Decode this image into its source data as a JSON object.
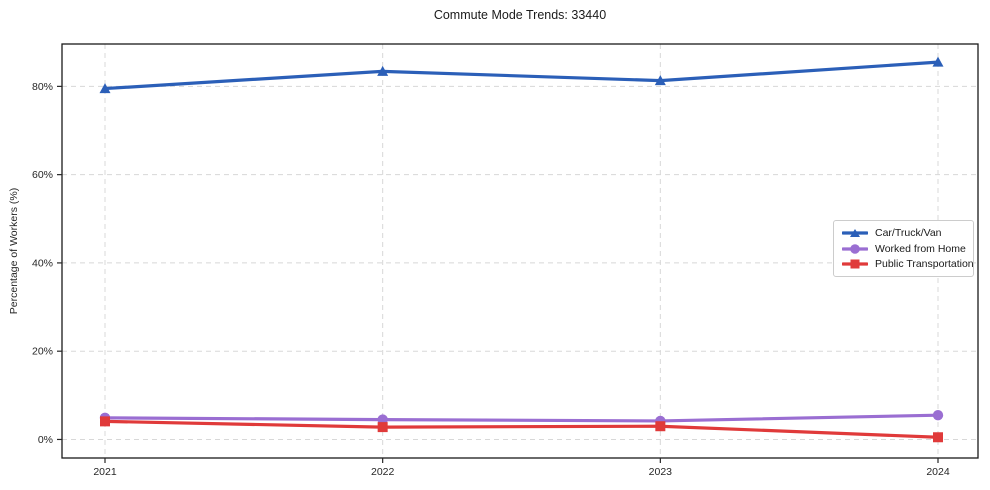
{
  "chart_data": {
    "type": "line",
    "title": "Commute Mode Trends: 33440",
    "xlabel": "",
    "ylabel": "Percentage of Workers (%)",
    "x": [
      2021,
      2022,
      2023,
      2024
    ],
    "x_tick_labels": [
      "2021",
      "2022",
      "2023",
      "2024"
    ],
    "y_ticks": [
      0,
      20,
      40,
      60,
      80
    ],
    "y_tick_labels": [
      "0%",
      "20%",
      "40%",
      "60%",
      "80%"
    ],
    "ylim": [
      -4.2,
      89.6
    ],
    "grid": true,
    "grid_style": "dashed",
    "legend_position": "middle-right",
    "series": [
      {
        "name": "Car/Truck/Van",
        "marker": "triangle",
        "color": "#2b5fb8",
        "values": [
          79.5,
          83.4,
          81.3,
          85.5
        ]
      },
      {
        "name": "Worked from Home",
        "marker": "circle",
        "color": "#9a6ed2",
        "values": [
          4.9,
          4.5,
          4.2,
          5.5
        ]
      },
      {
        "name": "Public Transportation",
        "marker": "square",
        "color": "#e03a3a",
        "values": [
          4.1,
          2.8,
          3.0,
          0.5
        ]
      }
    ]
  },
  "colors": {
    "grid": "#d8d8d8",
    "spine": "#1a1a1a",
    "tick": "#262626",
    "text": "#1a1a1a",
    "legend_border": "#cccccc",
    "background": "#ffffff"
  }
}
